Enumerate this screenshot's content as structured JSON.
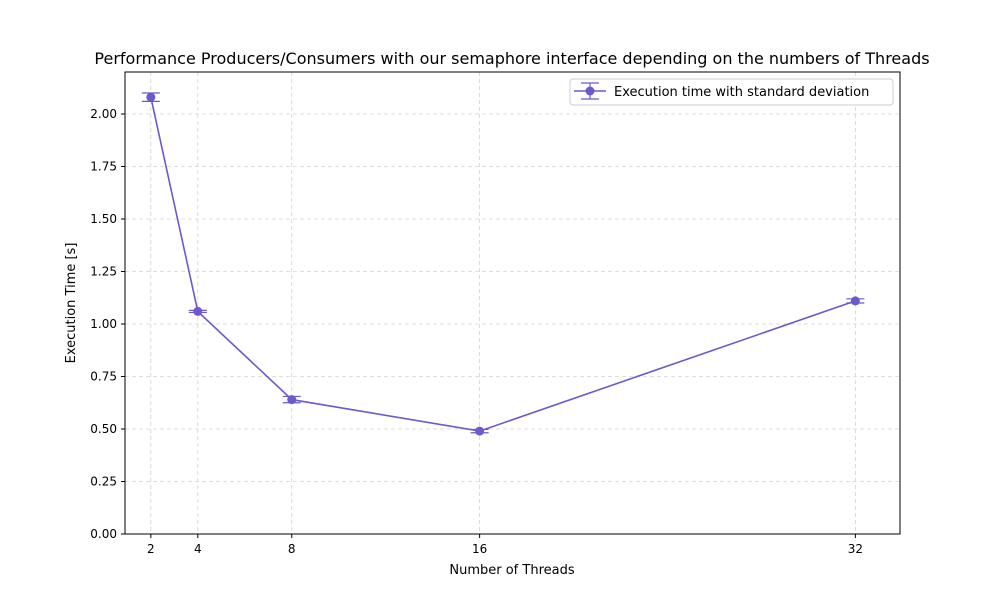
{
  "chart_data": {
    "type": "line",
    "title": "Performance Producers/Consumers with our semaphore interface depending on the numbers of Threads",
    "xlabel": "Number of Threads",
    "ylabel": "Execution Time [s]",
    "xlim": [
      0.9,
      33.9
    ],
    "ylim": [
      0.0,
      2.2
    ],
    "x_ticks": [
      2,
      4,
      8,
      16,
      32
    ],
    "x_tick_labels": [
      "2",
      "4",
      "8",
      "16",
      "32"
    ],
    "y_ticks": [
      0.0,
      0.25,
      0.5,
      0.75,
      1.0,
      1.25,
      1.5,
      1.75,
      2.0
    ],
    "y_tick_labels": [
      "0.00",
      "0.25",
      "0.50",
      "0.75",
      "1.00",
      "1.25",
      "1.50",
      "1.75",
      "2.00"
    ],
    "grid": true,
    "legend_position": "top-right",
    "series": [
      {
        "name": "Execution time with standard deviation",
        "color": "#6a5acd",
        "marker": "circle",
        "x": [
          2,
          4,
          8,
          16,
          32
        ],
        "y": [
          2.08,
          1.06,
          0.64,
          0.49,
          1.11
        ],
        "std": [
          0.02,
          0.005,
          0.015,
          0.008,
          0.01
        ]
      }
    ]
  }
}
